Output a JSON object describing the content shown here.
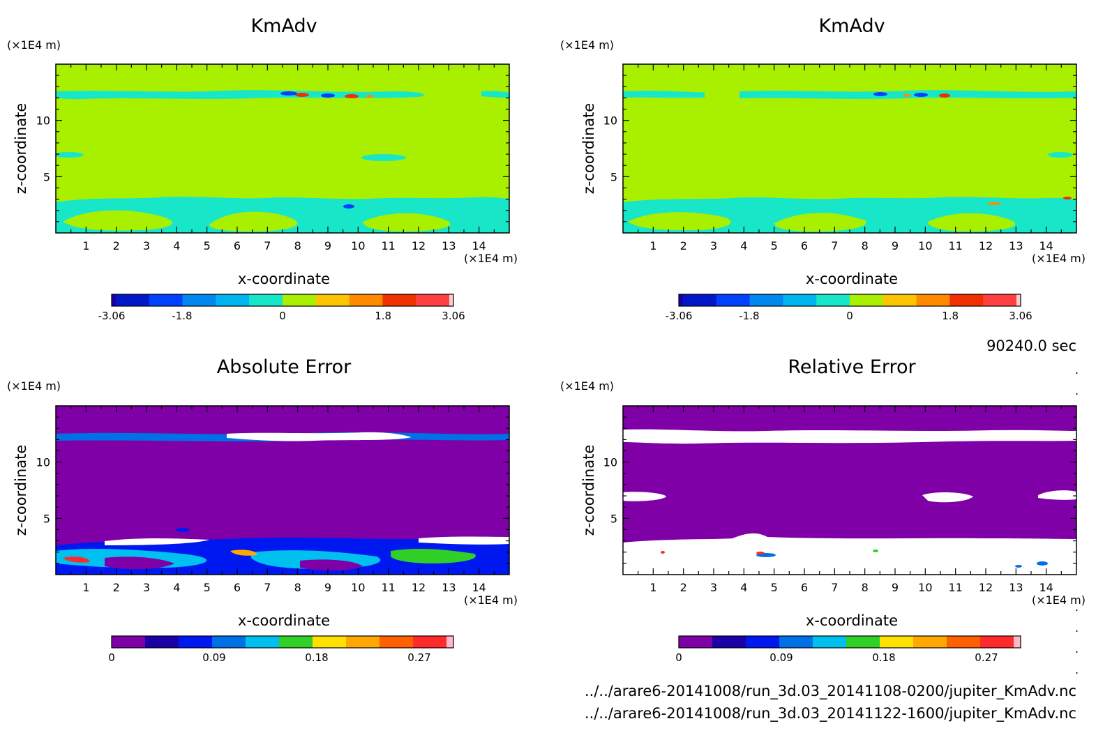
{
  "colors": {
    "kmadv_levels": [
      "#1a00a6",
      "#0018c8",
      "#0040ff",
      "#0088ee",
      "#00b4f0",
      "#18e6c8",
      "#a8f000",
      "#ffc400",
      "#ff8a00",
      "#f03000",
      "#ff4040",
      "#ffcccc"
    ],
    "error_levels": [
      "#8000a8",
      "#1a00a6",
      "#0018f0",
      "#0070e6",
      "#00c0f0",
      "#30d028",
      "#ffe000",
      "#ffa800",
      "#ff6000",
      "#ff2a2a",
      "#ffb8c8"
    ],
    "kmadv_background": "#a8f000",
    "kmadv_lowband": "#18e6c8",
    "error_background": "#8000a8",
    "error_white": "#ffffff"
  },
  "chart_data": [
    {
      "type": "heatmap",
      "title": "KmAdv",
      "xlabel": "x-coordinate",
      "ylabel": "z-coordinate",
      "x_unit": "(×1E4 m)",
      "y_unit": "(×1E4 m)",
      "xlim": [
        0,
        15
      ],
      "ylim": [
        0,
        15
      ],
      "x_ticks": [
        "1",
        "2",
        "3",
        "4",
        "5",
        "6",
        "7",
        "8",
        "9",
        "10",
        "11",
        "12",
        "13",
        "14"
      ],
      "y_ticks": [
        "5",
        "10"
      ],
      "colorbar": {
        "min": -3.06,
        "max": 3.06,
        "labels": [
          "-3.06",
          "-1.8",
          "0",
          "1.8",
          "3.06"
        ]
      }
    },
    {
      "type": "heatmap",
      "title": "KmAdv",
      "xlabel": "x-coordinate",
      "ylabel": "z-coordinate",
      "x_unit": "(×1E4 m)",
      "y_unit": "(×1E4 m)",
      "xlim": [
        0,
        15
      ],
      "ylim": [
        0,
        15
      ],
      "x_ticks": [
        "1",
        "2",
        "3",
        "4",
        "5",
        "6",
        "7",
        "8",
        "9",
        "10",
        "11",
        "12",
        "13",
        "14"
      ],
      "y_ticks": [
        "5",
        "10"
      ],
      "colorbar": {
        "min": -3.06,
        "max": 3.06,
        "labels": [
          "-3.06",
          "-1.8",
          "0",
          "1.8",
          "3.06"
        ]
      }
    },
    {
      "type": "heatmap",
      "title": "Absolute Error",
      "xlabel": "x-coordinate",
      "ylabel": "z-coordinate",
      "x_unit": "(×1E4 m)",
      "y_unit": "(×1E4 m)",
      "xlim": [
        0,
        15
      ],
      "ylim": [
        0,
        15
      ],
      "x_ticks": [
        "1",
        "2",
        "3",
        "4",
        "5",
        "6",
        "7",
        "8",
        "9",
        "10",
        "11",
        "12",
        "13",
        "14"
      ],
      "y_ticks": [
        "5",
        "10"
      ],
      "colorbar": {
        "min": 0,
        "max": 0.3,
        "labels": [
          "0",
          "0.09",
          "0.18",
          "0.27"
        ]
      }
    },
    {
      "type": "heatmap",
      "title": "Relative Error",
      "xlabel": "x-coordinate",
      "ylabel": "z-coordinate",
      "x_unit": "(×1E4 m)",
      "y_unit": "(×1E4 m)",
      "xlim": [
        0,
        15
      ],
      "ylim": [
        0,
        15
      ],
      "x_ticks": [
        "1",
        "2",
        "3",
        "4",
        "5",
        "6",
        "7",
        "8",
        "9",
        "10",
        "11",
        "12",
        "13",
        "14"
      ],
      "y_ticks": [
        "5",
        "10"
      ],
      "colorbar": {
        "min": 0,
        "max": 0.3,
        "labels": [
          "0",
          "0.09",
          "0.18",
          "0.27"
        ]
      }
    }
  ],
  "time_label": "90240.0 sec",
  "files": [
    "../../arare6-20141008/run_3d.03_20141108-0200/jupiter_KmAdv.nc",
    "../../arare6-20141008/run_3d.03_20141122-1600/jupiter_KmAdv.nc"
  ]
}
